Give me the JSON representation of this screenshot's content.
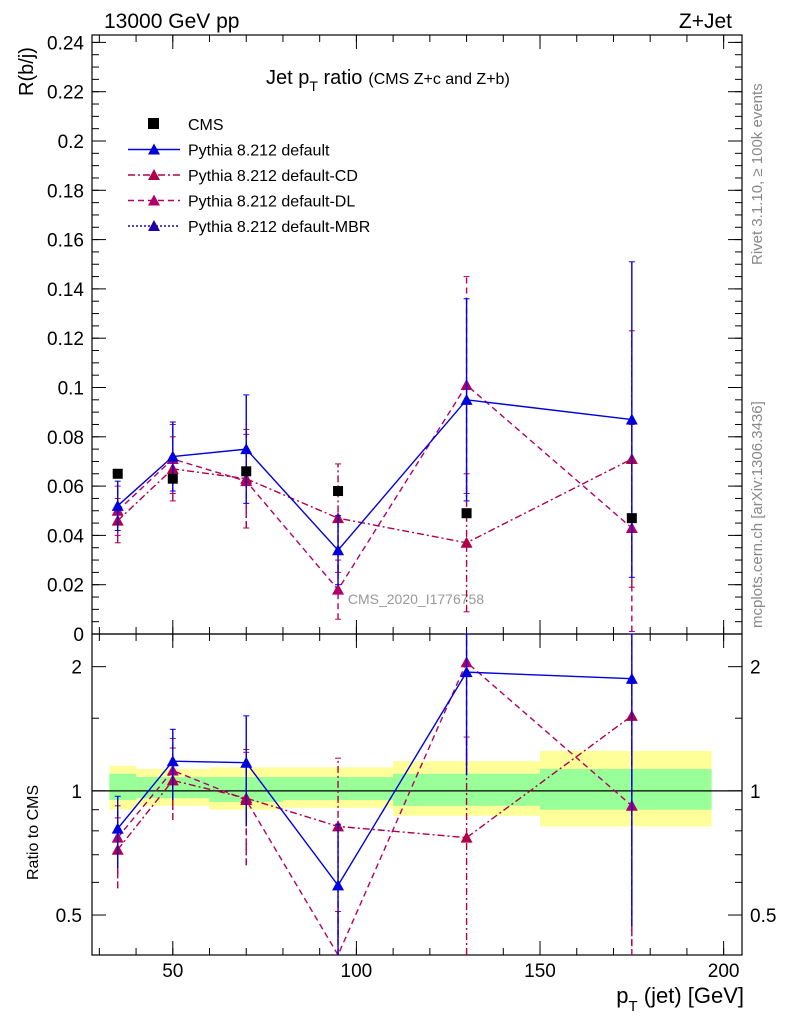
{
  "header": {
    "left_title": "13000 GeV pp",
    "right_title": "Z+Jet"
  },
  "plot_title": {
    "main": "Jet p",
    "main_sub": "T",
    "main_tail": " ratio",
    "detail": "(CMS  Z+c and Z+b)"
  },
  "side_labels": {
    "rivet": "Rivet 3.1.10, ≥ 100k events",
    "mcplots": "mcplots.cern.ch [arXiv:1306.3436]"
  },
  "watermark": "CMS_2020_I1776758",
  "axes": {
    "y_main_label": "R(b/j)",
    "y_ratio_label": "Ratio to CMS",
    "x_label_main": "p",
    "x_label_sub": "T",
    "x_label_tail": " (jet) [GeV]"
  },
  "colors": {
    "cms": "#000000",
    "default": "#0000dd",
    "cd": "#b0004a",
    "dl": "#b0006a",
    "mbr": "#2200aa",
    "band_inner": "#99ff99",
    "band_outer": "#ffff99"
  },
  "chart_data": {
    "type": "scatter",
    "x_axis": {
      "range": [
        28,
        205
      ],
      "ticks": [
        50,
        100,
        150,
        200
      ]
    },
    "y_main": {
      "range": [
        0,
        0.243
      ],
      "ticks": [
        "0",
        "0.02",
        "0.04",
        "0.06",
        "0.08",
        "0.1",
        "0.12",
        "0.14",
        "0.16",
        "0.18",
        "0.2",
        "0.22",
        "0.24"
      ]
    },
    "y_ratio": {
      "scale": "log",
      "range": [
        0.4,
        2.4
      ],
      "tick_labels": [
        "0.5",
        "1",
        "2"
      ]
    },
    "legend": {
      "placement": "top-left",
      "entries": [
        "CMS",
        "Pythia 8.212 default",
        "Pythia 8.212 default-CD",
        "Pythia 8.212 default-DL",
        "Pythia 8.212 default-MBR"
      ]
    },
    "cms": {
      "name": "CMS",
      "x": [
        35,
        50,
        70,
        95,
        130,
        175
      ],
      "y": [
        0.065,
        0.063,
        0.066,
        0.058,
        0.049,
        0.047
      ]
    },
    "ratio_band_bins": [
      30,
      40,
      60,
      80,
      110,
      150,
      200
    ],
    "ratio_band_inner": [
      [
        0.95,
        1.1
      ],
      [
        0.96,
        1.08
      ],
      [
        0.94,
        1.08
      ],
      [
        0.95,
        1.08
      ],
      [
        0.92,
        1.1
      ],
      [
        0.9,
        1.13
      ],
      [
        0.9,
        1.13
      ]
    ],
    "ratio_band_outer": [
      [
        0.9,
        1.15
      ],
      [
        0.92,
        1.13
      ],
      [
        0.9,
        1.14
      ],
      [
        0.91,
        1.14
      ],
      [
        0.87,
        1.18
      ],
      [
        0.82,
        1.25
      ],
      [
        0.82,
        1.25
      ]
    ],
    "series": [
      {
        "name": "Pythia 8.212 default",
        "key": "default",
        "style": "solid",
        "x": [
          35,
          50,
          70,
          95,
          130,
          175
        ],
        "y": [
          0.052,
          0.072,
          0.075,
          0.034,
          0.095,
          0.087
        ],
        "yerr": [
          0.01,
          0.014,
          0.022,
          0.014,
          0.041,
          0.064
        ],
        "ratio": [
          0.81,
          1.18,
          1.17,
          0.59,
          1.94,
          1.87
        ],
        "ratio_err": [
          0.16,
          0.23,
          0.35,
          0.24,
          0.85,
          1.4
        ]
      },
      {
        "name": "Pythia 8.212 default-CD",
        "key": "cd",
        "style": "dashdot",
        "x": [
          35,
          50,
          70,
          95,
          130,
          175
        ],
        "y": [
          0.046,
          0.067,
          0.063,
          0.047,
          0.037,
          0.071
        ],
        "yerr": [
          0.009,
          0.013,
          0.02,
          0.022,
          0.028,
          0.052
        ],
        "ratio": [
          0.72,
          1.06,
          0.96,
          0.82,
          0.77,
          1.52
        ],
        "ratio_err": [
          0.14,
          0.21,
          0.3,
          0.38,
          0.58,
          1.1
        ]
      },
      {
        "name": "Pythia 8.212 default-DL",
        "key": "dl",
        "style": "dashed",
        "x": [
          35,
          50,
          70,
          95,
          130,
          175
        ],
        "y": [
          0.05,
          0.071,
          0.062,
          0.018,
          0.101,
          0.043
        ],
        "yerr": [
          0.01,
          0.014,
          0.019,
          0.012,
          0.044,
          0.042
        ],
        "ratio": [
          0.77,
          1.12,
          0.95,
          0.31,
          2.05,
          0.92
        ],
        "ratio_err": [
          0.15,
          0.22,
          0.29,
          0.2,
          0.9,
          0.9
        ]
      },
      {
        "name": "Pythia 8.212 default-MBR",
        "key": "mbr",
        "style": "dotted",
        "x": [],
        "y": [],
        "yerr": [],
        "ratio": [],
        "ratio_err": []
      }
    ]
  }
}
